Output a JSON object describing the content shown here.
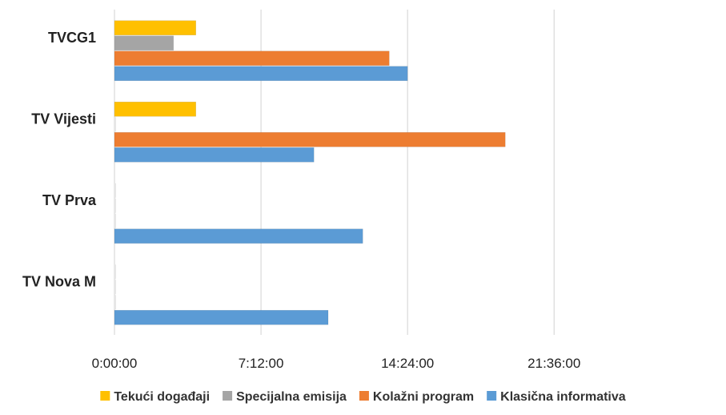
{
  "chart_data": {
    "type": "bar",
    "orientation": "horizontal",
    "categories": [
      "TVCG1",
      "TV Vijesti",
      "TV Prva",
      "TV Nova M"
    ],
    "xlim": [
      0,
      28
    ],
    "x_unit": "hours",
    "x_ticks": [
      {
        "value": 0,
        "label": "0:00:00"
      },
      {
        "value": 7.2,
        "label": "7:12:00"
      },
      {
        "value": 14.4,
        "label": "14:24:00"
      },
      {
        "value": 21.6,
        "label": "21:36:00"
      }
    ],
    "grid": "vertical",
    "legend_position": "bottom",
    "series": [
      {
        "name": "Tekući događaji",
        "color": "#FFC000",
        "values": [
          4.0,
          4.0,
          0,
          0
        ]
      },
      {
        "name": "Specijalna emisija",
        "color": "#A5A5A5",
        "values": [
          2.9,
          0,
          0,
          0
        ]
      },
      {
        "name": "Kolažni program",
        "color": "#ED7D31",
        "values": [
          13.5,
          19.2,
          0,
          0
        ]
      },
      {
        "name": "Klasična informativa",
        "color": "#5B9BD5",
        "values": [
          14.4,
          9.8,
          12.2,
          10.5
        ]
      }
    ]
  }
}
